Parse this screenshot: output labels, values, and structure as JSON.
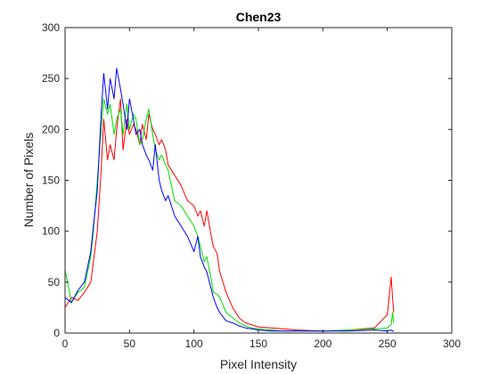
{
  "chart_data": {
    "type": "line",
    "title": "Chen23",
    "xlabel": "Pixel Intensity",
    "ylabel": "Number of Pixels",
    "xlim": [
      0,
      300
    ],
    "ylim": [
      0,
      300
    ],
    "xticks": [
      "0",
      "50",
      "100",
      "150",
      "200",
      "250",
      "300"
    ],
    "yticks": [
      "0",
      "50",
      "100",
      "150",
      "200",
      "250",
      "300"
    ],
    "grid": false,
    "legend": "none",
    "x_values": [
      0,
      5,
      10,
      15,
      20,
      22,
      25,
      28,
      30,
      33,
      35,
      38,
      40,
      43,
      45,
      48,
      50,
      53,
      55,
      58,
      60,
      63,
      65,
      68,
      70,
      73,
      75,
      78,
      80,
      85,
      90,
      95,
      100,
      103,
      105,
      108,
      110,
      113,
      115,
      118,
      120,
      125,
      130,
      135,
      140,
      145,
      150,
      160,
      170,
      180,
      200,
      220,
      240,
      250,
      253,
      254,
      255
    ],
    "series": [
      {
        "color": "#ff0000",
        "values": [
          25,
          35,
          32,
          40,
          50,
          70,
          100,
          160,
          210,
          170,
          185,
          170,
          200,
          230,
          180,
          210,
          195,
          205,
          200,
          185,
          205,
          190,
          215,
          200,
          195,
          185,
          190,
          180,
          165,
          155,
          145,
          130,
          125,
          115,
          120,
          105,
          120,
          98,
          85,
          78,
          60,
          40,
          25,
          15,
          10,
          8,
          6,
          5,
          4,
          3,
          2,
          3,
          5,
          18,
          55,
          35,
          20
        ]
      },
      {
        "color": "#00dd00",
        "values": [
          62,
          30,
          40,
          45,
          75,
          100,
          150,
          200,
          230,
          215,
          225,
          195,
          210,
          220,
          195,
          225,
          200,
          215,
          210,
          185,
          190,
          210,
          220,
          195,
          180,
          170,
          175,
          165,
          160,
          130,
          125,
          115,
          105,
          95,
          85,
          70,
          75,
          55,
          40,
          38,
          35,
          20,
          15,
          10,
          7,
          5,
          4,
          3,
          2,
          2,
          2,
          3,
          4,
          5,
          8,
          20,
          10
        ]
      },
      {
        "color": "#0000ff",
        "values": [
          35,
          30,
          42,
          50,
          80,
          105,
          140,
          215,
          255,
          220,
          250,
          230,
          260,
          240,
          225,
          200,
          230,
          210,
          195,
          200,
          185,
          175,
          170,
          160,
          185,
          150,
          140,
          130,
          135,
          115,
          105,
          95,
          80,
          95,
          75,
          65,
          60,
          45,
          35,
          25,
          20,
          12,
          10,
          7,
          5,
          4,
          3,
          2,
          2,
          2,
          2,
          2,
          3,
          2,
          3,
          2,
          2
        ]
      }
    ]
  }
}
